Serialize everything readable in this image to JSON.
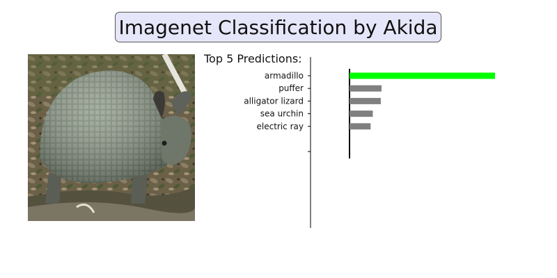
{
  "title": "Imagenet Classification by Akida",
  "image": {
    "subject": "armadillo"
  },
  "chart_data": {
    "type": "bar",
    "orientation": "horizontal",
    "title": "Top 5 Predictions:",
    "categories": [
      "armadillo",
      "puffer",
      "alligator lizard",
      "sea urchin",
      "electric ray"
    ],
    "values": [
      1.0,
      0.22,
      0.215,
      0.16,
      0.145
    ],
    "xlim": [
      0,
      1.0
    ],
    "grid": false,
    "colors": {
      "top": "#00ff00",
      "other": "#808080",
      "axis": "#000000"
    }
  }
}
